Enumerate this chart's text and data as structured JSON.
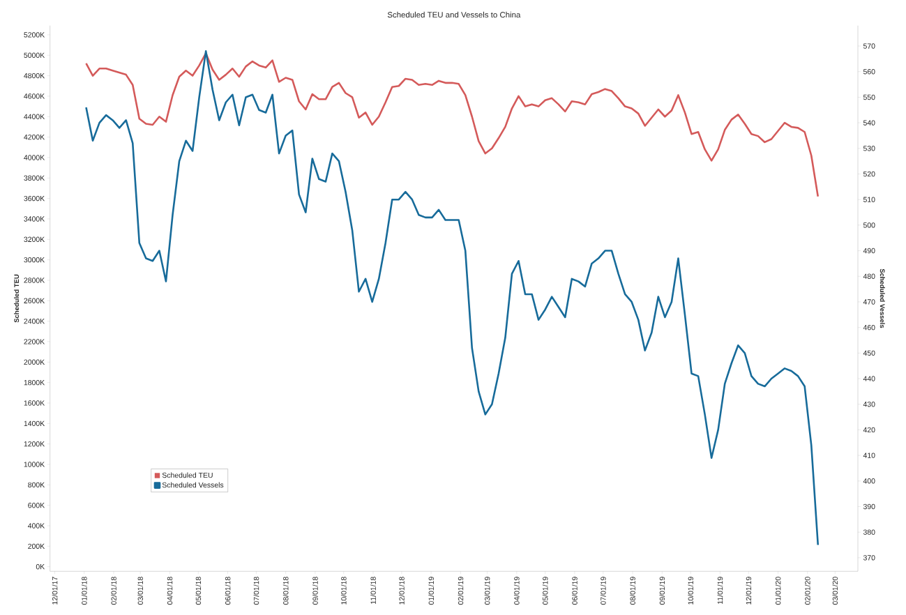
{
  "chart_data": {
    "type": "line",
    "title": "Scheduled TEU and Vessels to China",
    "ylabel": "Scheduled TEU",
    "y2label": "Scheduled Vessels",
    "legend": "bottom left",
    "x": [
      "2018-01-03",
      "2018-01-10",
      "2018-01-17",
      "2018-01-24",
      "2018-01-31",
      "2018-02-07",
      "2018-02-14",
      "2018-02-21",
      "2018-02-28",
      "2018-03-07",
      "2018-03-14",
      "2018-03-21",
      "2018-03-28",
      "2018-04-04",
      "2018-04-11",
      "2018-04-18",
      "2018-04-25",
      "2018-05-02",
      "2018-05-09",
      "2018-05-16",
      "2018-05-23",
      "2018-05-30",
      "2018-06-06",
      "2018-06-13",
      "2018-06-20",
      "2018-06-27",
      "2018-07-04",
      "2018-07-11",
      "2018-07-18",
      "2018-07-25",
      "2018-08-01",
      "2018-08-08",
      "2018-08-15",
      "2018-08-22",
      "2018-08-29",
      "2018-09-05",
      "2018-09-12",
      "2018-09-19",
      "2018-09-26",
      "2018-10-03",
      "2018-10-10",
      "2018-10-17",
      "2018-10-24",
      "2018-10-31",
      "2018-11-07",
      "2018-11-14",
      "2018-11-21",
      "2018-11-28",
      "2018-12-05",
      "2018-12-12",
      "2018-12-19",
      "2018-12-26",
      "2019-01-02",
      "2019-01-09",
      "2019-01-16",
      "2019-01-23",
      "2019-01-30",
      "2019-02-06",
      "2019-02-13",
      "2019-02-20",
      "2019-02-27",
      "2019-03-06",
      "2019-03-13",
      "2019-03-20",
      "2019-03-27",
      "2019-04-03",
      "2019-04-10",
      "2019-04-17",
      "2019-04-24",
      "2019-05-01",
      "2019-05-08",
      "2019-05-15",
      "2019-05-22",
      "2019-05-29",
      "2019-06-05",
      "2019-06-12",
      "2019-06-19",
      "2019-06-26",
      "2019-07-03",
      "2019-07-10",
      "2019-07-17",
      "2019-07-24",
      "2019-07-31",
      "2019-08-07",
      "2019-08-14",
      "2019-08-21",
      "2019-08-28",
      "2019-09-04",
      "2019-09-11",
      "2019-09-18",
      "2019-09-25",
      "2019-10-02",
      "2019-10-09",
      "2019-10-16",
      "2019-10-23",
      "2019-10-30",
      "2019-11-06",
      "2019-11-13",
      "2019-11-20",
      "2019-11-27",
      "2019-12-04",
      "2019-12-11",
      "2019-12-18",
      "2019-12-25",
      "2020-01-01",
      "2020-01-08",
      "2020-01-15",
      "2020-01-22",
      "2020-01-29",
      "2020-02-05",
      "2020-02-12"
    ],
    "series": [
      {
        "name": "Scheduled TEU",
        "color": "#d45a5a",
        "values": [
          4920000,
          4800000,
          4870000,
          4870000,
          4850000,
          4830000,
          4810000,
          4710000,
          4380000,
          4330000,
          4320000,
          4400000,
          4350000,
          4610000,
          4790000,
          4850000,
          4800000,
          4900000,
          5020000,
          4860000,
          4760000,
          4810000,
          4870000,
          4790000,
          4890000,
          4940000,
          4900000,
          4880000,
          4950000,
          4740000,
          4780000,
          4760000,
          4550000,
          4470000,
          4620000,
          4570000,
          4570000,
          4690000,
          4730000,
          4630000,
          4590000,
          4390000,
          4440000,
          4320000,
          4400000,
          4540000,
          4690000,
          4700000,
          4770000,
          4760000,
          4710000,
          4720000,
          4710000,
          4750000,
          4730000,
          4730000,
          4720000,
          4610000,
          4400000,
          4160000,
          4040000,
          4090000,
          4190000,
          4300000,
          4480000,
          4600000,
          4500000,
          4520000,
          4500000,
          4560000,
          4580000,
          4520000,
          4450000,
          4550000,
          4540000,
          4520000,
          4620000,
          4640000,
          4670000,
          4650000,
          4580000,
          4500000,
          4480000,
          4430000,
          4310000,
          4390000,
          4470000,
          4400000,
          4460000,
          4610000,
          4440000,
          4230000,
          4250000,
          4080000,
          3970000,
          4080000,
          4270000,
          4370000,
          4420000,
          4330000,
          4230000,
          4210000,
          4150000,
          4180000,
          4260000,
          4340000,
          4300000,
          4290000,
          4250000,
          4020000,
          3620000
        ]
      },
      {
        "name": "Scheduled Vessels",
        "color": "#176b9a",
        "axis": "y2",
        "values": [
          546,
          533,
          540,
          543,
          541,
          538,
          541,
          532,
          493,
          487,
          486,
          490,
          478,
          504,
          525,
          533,
          529,
          550,
          568,
          553,
          541,
          548,
          551,
          539,
          550,
          551,
          545,
          544,
          551,
          528,
          535,
          537,
          512,
          505,
          526,
          518,
          517,
          528,
          525,
          513,
          498,
          474,
          479,
          470,
          479,
          493,
          510,
          510,
          513,
          510,
          504,
          503,
          503,
          506,
          502,
          502,
          502,
          490,
          452,
          435,
          426,
          430,
          442,
          456,
          481,
          486,
          473,
          473,
          463,
          467,
          472,
          468,
          464,
          479,
          478,
          476,
          485,
          487,
          490,
          490,
          481,
          473,
          470,
          463,
          451,
          458,
          472,
          464,
          470,
          487,
          465,
          442,
          441,
          426,
          409,
          420,
          438,
          446,
          453,
          450,
          441,
          438,
          437,
          440,
          442,
          444,
          443,
          441,
          437,
          414,
          375
        ]
      }
    ],
    "xlim": [
      "2017-11-26",
      "2020-03-25"
    ],
    "xticks": [
      {
        "value": "2017-12-01",
        "label": "12/01/17"
      },
      {
        "value": "2018-01-01",
        "label": "01/01/18"
      },
      {
        "value": "2018-02-01",
        "label": "02/01/18"
      },
      {
        "value": "2018-03-01",
        "label": "03/01/18"
      },
      {
        "value": "2018-04-01",
        "label": "04/01/18"
      },
      {
        "value": "2018-05-01",
        "label": "05/01/18"
      },
      {
        "value": "2018-06-01",
        "label": "06/01/18"
      },
      {
        "value": "2018-07-01",
        "label": "07/01/18"
      },
      {
        "value": "2018-08-01",
        "label": "08/01/18"
      },
      {
        "value": "2018-09-01",
        "label": "09/01/18"
      },
      {
        "value": "2018-10-01",
        "label": "10/01/18"
      },
      {
        "value": "2018-11-01",
        "label": "11/01/18"
      },
      {
        "value": "2018-12-01",
        "label": "12/01/18"
      },
      {
        "value": "2019-01-01",
        "label": "01/01/19"
      },
      {
        "value": "2019-02-01",
        "label": "02/01/19"
      },
      {
        "value": "2019-03-01",
        "label": "03/01/19"
      },
      {
        "value": "2019-04-01",
        "label": "04/01/19"
      },
      {
        "value": "2019-05-01",
        "label": "05/01/19"
      },
      {
        "value": "2019-06-01",
        "label": "06/01/19"
      },
      {
        "value": "2019-07-01",
        "label": "07/01/19"
      },
      {
        "value": "2019-08-01",
        "label": "08/01/19"
      },
      {
        "value": "2019-09-01",
        "label": "09/01/19"
      },
      {
        "value": "2019-10-01",
        "label": "10/01/19"
      },
      {
        "value": "2019-11-01",
        "label": "11/01/19"
      },
      {
        "value": "2019-12-01",
        "label": "12/01/19"
      },
      {
        "value": "2020-01-01",
        "label": "01/01/20"
      },
      {
        "value": "2020-02-01",
        "label": "02/01/20"
      },
      {
        "value": "2020-03-01",
        "label": "03/01/20"
      }
    ],
    "ylim": [
      -45000,
      5290000
    ],
    "yticks": [
      {
        "value": 0,
        "label": "0K"
      },
      {
        "value": 200000,
        "label": "200K"
      },
      {
        "value": 400000,
        "label": "400K"
      },
      {
        "value": 600000,
        "label": "600K"
      },
      {
        "value": 800000,
        "label": "800K"
      },
      {
        "value": 1000000,
        "label": "1000K"
      },
      {
        "value": 1200000,
        "label": "1200K"
      },
      {
        "value": 1400000,
        "label": "1400K"
      },
      {
        "value": 1600000,
        "label": "1600K"
      },
      {
        "value": 1800000,
        "label": "1800K"
      },
      {
        "value": 2000000,
        "label": "2000K"
      },
      {
        "value": 2200000,
        "label": "2200K"
      },
      {
        "value": 2400000,
        "label": "2400K"
      },
      {
        "value": 2600000,
        "label": "2600K"
      },
      {
        "value": 2800000,
        "label": "2800K"
      },
      {
        "value": 3000000,
        "label": "3000K"
      },
      {
        "value": 3200000,
        "label": "3200K"
      },
      {
        "value": 3400000,
        "label": "3400K"
      },
      {
        "value": 3600000,
        "label": "3600K"
      },
      {
        "value": 3800000,
        "label": "3800K"
      },
      {
        "value": 4000000,
        "label": "4000K"
      },
      {
        "value": 4200000,
        "label": "4200K"
      },
      {
        "value": 4400000,
        "label": "4400K"
      },
      {
        "value": 4600000,
        "label": "4600K"
      },
      {
        "value": 4800000,
        "label": "4800K"
      },
      {
        "value": 5000000,
        "label": "5000K"
      },
      {
        "value": 5200000,
        "label": "5200K"
      }
    ],
    "y2lim": [
      364.7,
      578
    ],
    "y2ticks": [
      370,
      380,
      390,
      400,
      410,
      420,
      430,
      440,
      450,
      460,
      470,
      480,
      490,
      500,
      510,
      520,
      530,
      540,
      550,
      560,
      570
    ]
  }
}
